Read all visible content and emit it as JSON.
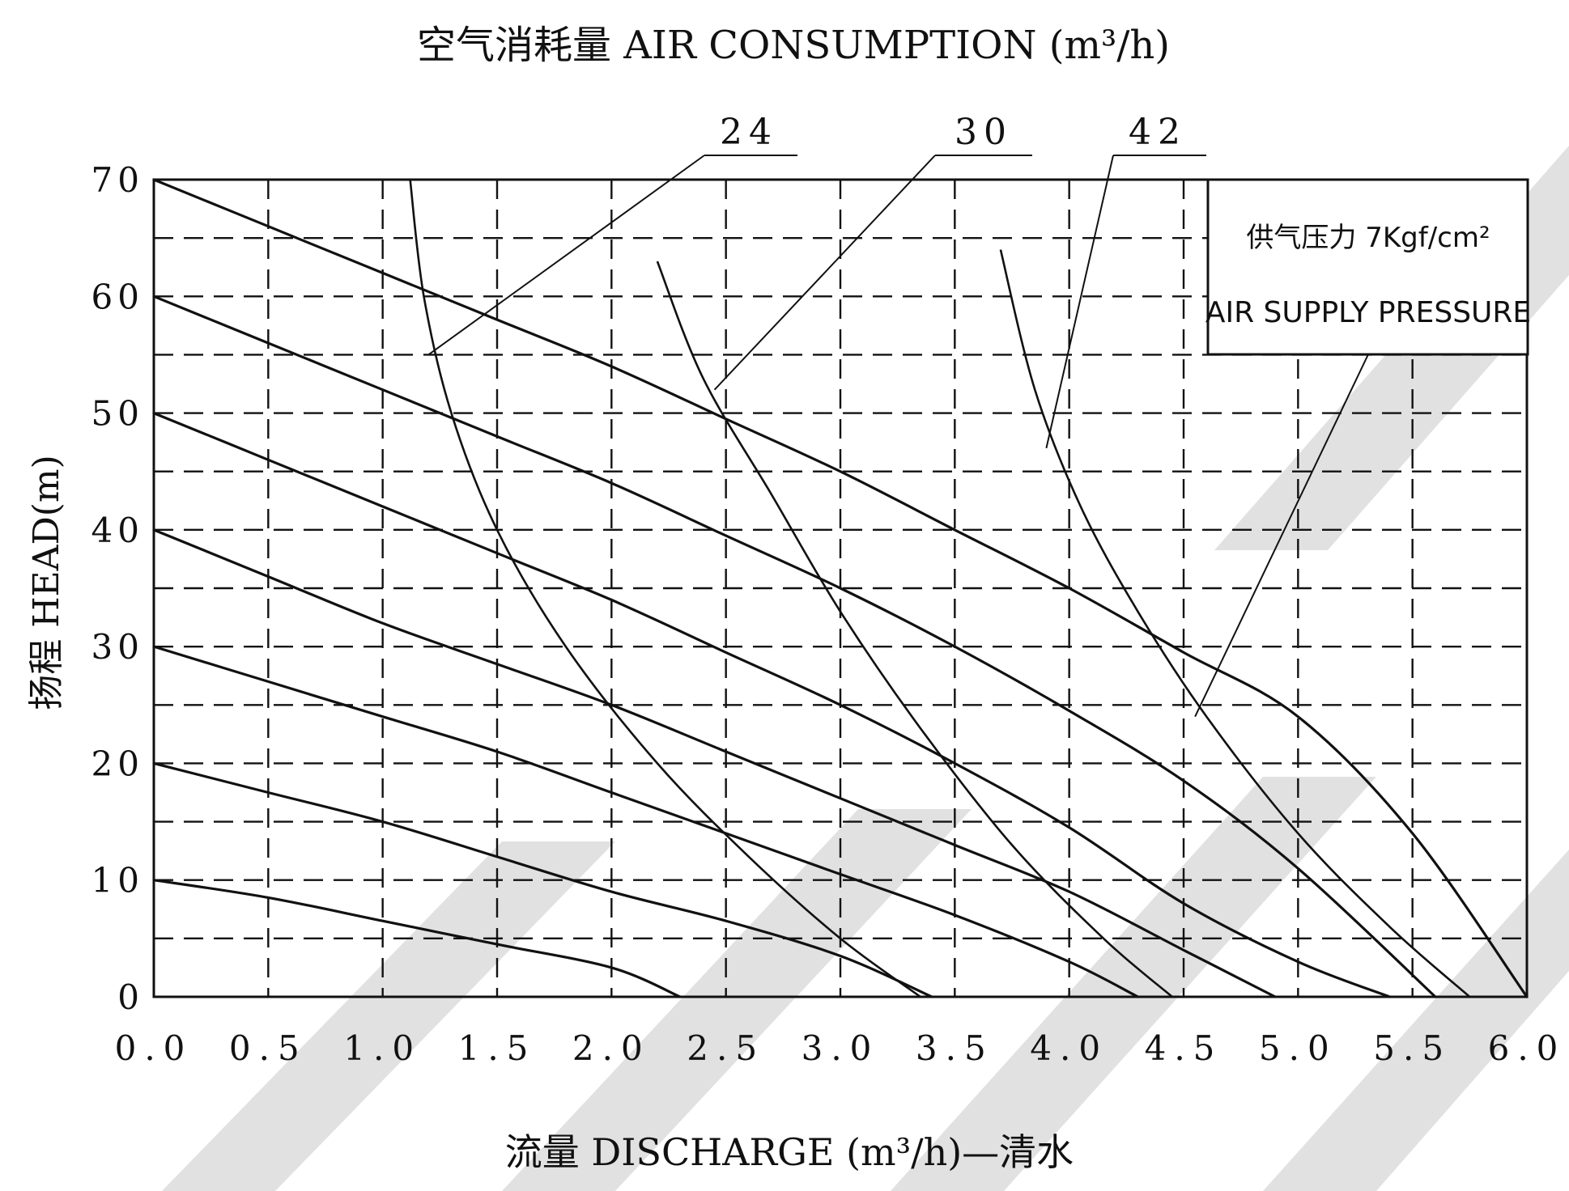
{
  "chart_data": {
    "type": "line",
    "title": "空气消耗量 AIR CONSUMPTION (m³/h)",
    "xlabel": "流量 DISCHARGE (m³/h)—清水",
    "ylabel": "扬程 HEAD(m)",
    "xlim": [
      0,
      6
    ],
    "ylim": [
      0,
      70
    ],
    "x_ticks": [
      "0.0",
      "0.5",
      "1.0",
      "1.5",
      "2.0",
      "2.5",
      "3.0",
      "3.5",
      "4.0",
      "4.5",
      "5.0",
      "5.5",
      "6.0"
    ],
    "y_ticks": [
      "0",
      "10",
      "20",
      "30",
      "40",
      "50",
      "60",
      "70"
    ],
    "grid": true,
    "legend_box": {
      "line1": "供气压力 7Kgf/cm²",
      "line2": "AIR SUPPLY PRESSURE"
    },
    "series": [
      {
        "kind": "head",
        "points": [
          [
            0,
            70
          ],
          [
            0.5,
            66
          ],
          [
            1.0,
            62
          ],
          [
            1.5,
            58
          ],
          [
            2.0,
            54
          ],
          [
            2.5,
            49.5
          ],
          [
            3.0,
            45
          ],
          [
            3.5,
            40
          ],
          [
            4.0,
            35
          ],
          [
            4.5,
            29.5
          ],
          [
            5.0,
            24
          ],
          [
            5.5,
            14
          ],
          [
            6.0,
            0
          ]
        ]
      },
      {
        "kind": "head",
        "points": [
          [
            0,
            60
          ],
          [
            0.5,
            56
          ],
          [
            1.0,
            52
          ],
          [
            1.5,
            48
          ],
          [
            2.0,
            44
          ],
          [
            2.5,
            39.5
          ],
          [
            3.0,
            35
          ],
          [
            3.5,
            30
          ],
          [
            4.0,
            24.5
          ],
          [
            4.5,
            18.5
          ],
          [
            5.0,
            11
          ],
          [
            5.6,
            0
          ]
        ]
      },
      {
        "kind": "head",
        "points": [
          [
            0,
            50
          ],
          [
            0.5,
            46
          ],
          [
            1.0,
            42
          ],
          [
            1.5,
            38
          ],
          [
            2.0,
            34
          ],
          [
            2.5,
            29.5
          ],
          [
            3.0,
            25
          ],
          [
            3.5,
            20
          ],
          [
            4.0,
            14.5
          ],
          [
            4.5,
            8
          ],
          [
            5.0,
            3
          ],
          [
            5.4,
            0
          ]
        ]
      },
      {
        "kind": "head",
        "points": [
          [
            0,
            40
          ],
          [
            0.5,
            36
          ],
          [
            1.0,
            32
          ],
          [
            1.5,
            28.5
          ],
          [
            2.0,
            25
          ],
          [
            2.5,
            21
          ],
          [
            3.0,
            17
          ],
          [
            3.5,
            13
          ],
          [
            4.0,
            9
          ],
          [
            4.5,
            4
          ],
          [
            4.9,
            0
          ]
        ]
      },
      {
        "kind": "head",
        "points": [
          [
            0,
            30
          ],
          [
            0.5,
            27
          ],
          [
            1.0,
            24
          ],
          [
            1.5,
            21
          ],
          [
            2.0,
            17.5
          ],
          [
            2.5,
            14
          ],
          [
            3.0,
            10.5
          ],
          [
            3.5,
            7
          ],
          [
            4.0,
            3
          ],
          [
            4.3,
            0
          ]
        ]
      },
      {
        "kind": "head",
        "points": [
          [
            0,
            20
          ],
          [
            0.5,
            17.5
          ],
          [
            1.0,
            15
          ],
          [
            1.5,
            12
          ],
          [
            2.0,
            9
          ],
          [
            2.5,
            6.5
          ],
          [
            3.0,
            3.5
          ],
          [
            3.4,
            0
          ]
        ]
      },
      {
        "kind": "head",
        "points": [
          [
            0,
            10
          ],
          [
            0.5,
            8.5
          ],
          [
            1.0,
            6.5
          ],
          [
            1.5,
            4.5
          ],
          [
            2.0,
            2.5
          ],
          [
            2.3,
            0
          ]
        ]
      },
      {
        "name": "24",
        "kind": "air",
        "points": [
          [
            1.12,
            70
          ],
          [
            1.18,
            60
          ],
          [
            1.3,
            50
          ],
          [
            1.5,
            40
          ],
          [
            1.8,
            30
          ],
          [
            2.2,
            20
          ],
          [
            2.6,
            12
          ],
          [
            3.0,
            5
          ],
          [
            3.35,
            0
          ]
        ]
      },
      {
        "name": "30",
        "kind": "air",
        "points": [
          [
            2.2,
            63
          ],
          [
            2.4,
            53
          ],
          [
            2.7,
            43
          ],
          [
            3.0,
            33
          ],
          [
            3.35,
            23
          ],
          [
            3.75,
            13
          ],
          [
            4.15,
            5
          ],
          [
            4.45,
            0
          ]
        ]
      },
      {
        "name": "42",
        "kind": "air",
        "points": [
          [
            3.7,
            64
          ],
          [
            3.85,
            52
          ],
          [
            4.05,
            42
          ],
          [
            4.3,
            33
          ],
          [
            4.6,
            24
          ],
          [
            5.0,
            14
          ],
          [
            5.4,
            6
          ],
          [
            5.75,
            0
          ]
        ]
      }
    ],
    "air_labels": [
      {
        "text": "24",
        "leader_to": [
          1.2,
          55
        ]
      },
      {
        "text": "30",
        "leader_to": [
          2.45,
          52
        ]
      },
      {
        "text": "42",
        "leader_to": [
          3.9,
          47
        ]
      }
    ],
    "pressure_leader_to": [
      4.55,
      24
    ]
  }
}
